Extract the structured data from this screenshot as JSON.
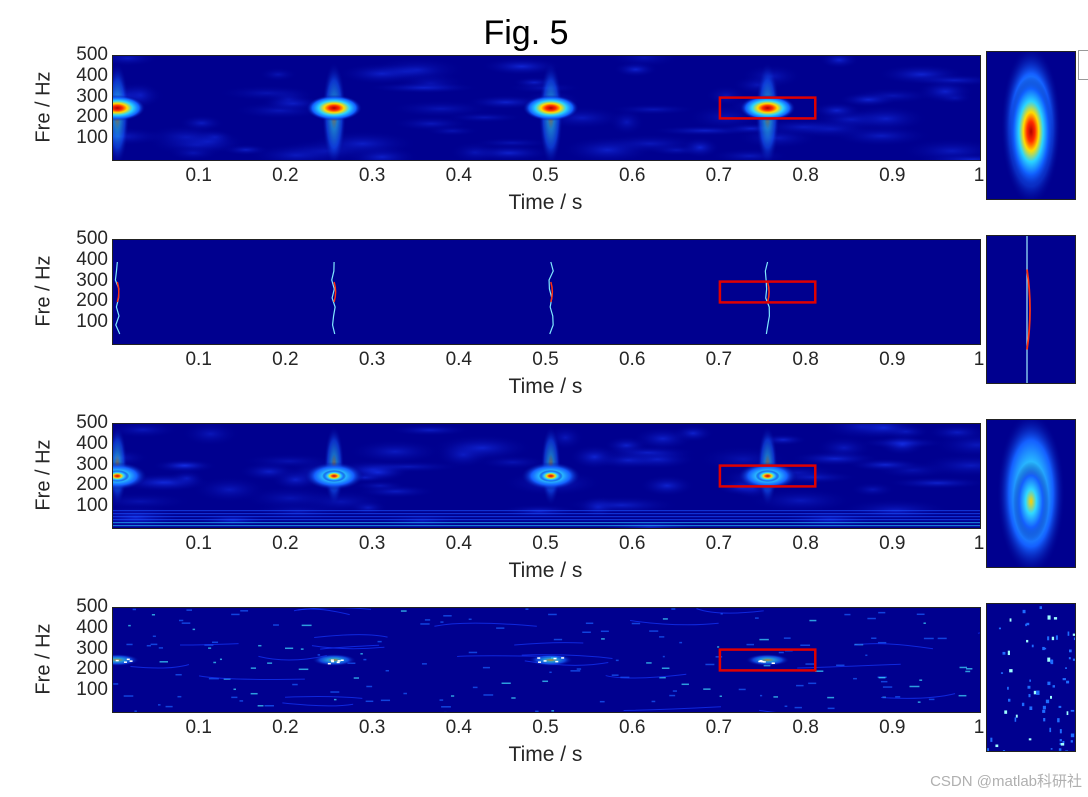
{
  "figure_title": "Fig. 5",
  "watermark": "CSDN @matlab科研社",
  "colors": {
    "background_low": "#00008f",
    "box": "#e00000"
  },
  "chart_data": [
    {
      "type": "heatmap",
      "title": "",
      "xlabel": "Time / s",
      "ylabel": "Fre / Hz",
      "xlim": [
        0,
        1
      ],
      "ylim": [
        0,
        500
      ],
      "xticks": [
        "0.1",
        "0.2",
        "0.3",
        "0.4",
        "0.5",
        "0.6",
        "0.7",
        "0.8",
        "0.9",
        "1"
      ],
      "yticks": [
        "100",
        "200",
        "300",
        "400",
        "500"
      ],
      "colormap": "jet",
      "style": "blob",
      "peaks": [
        {
          "t": 0.005,
          "f": 250
        },
        {
          "t": 0.255,
          "f": 250
        },
        {
          "t": 0.505,
          "f": 250
        },
        {
          "t": 0.755,
          "f": 250
        }
      ],
      "highlight_box": {
        "t0": 0.7,
        "t1": 0.81,
        "f0": 200,
        "f1": 300
      }
    },
    {
      "type": "heatmap",
      "title": "",
      "xlabel": "Time / s",
      "ylabel": "Fre / Hz",
      "xlim": [
        0,
        1
      ],
      "ylim": [
        0,
        500
      ],
      "xticks": [
        "0.1",
        "0.2",
        "0.3",
        "0.4",
        "0.5",
        "0.6",
        "0.7",
        "0.8",
        "0.9",
        "1"
      ],
      "yticks": [
        "100",
        "200",
        "300",
        "400",
        "500"
      ],
      "colormap": "jet",
      "style": "ridge",
      "peaks": [
        {
          "t": 0.005,
          "f": 250
        },
        {
          "t": 0.255,
          "f": 250
        },
        {
          "t": 0.505,
          "f": 250
        },
        {
          "t": 0.755,
          "f": 250
        }
      ],
      "highlight_box": {
        "t0": 0.7,
        "t1": 0.81,
        "f0": 200,
        "f1": 300
      }
    },
    {
      "type": "heatmap",
      "title": "",
      "xlabel": "Time / s",
      "ylabel": "Fre / Hz",
      "xlim": [
        0,
        1
      ],
      "ylim": [
        0,
        500
      ],
      "xticks": [
        "0.1",
        "0.2",
        "0.3",
        "0.4",
        "0.5",
        "0.6",
        "0.7",
        "0.8",
        "0.9",
        "1"
      ],
      "yticks": [
        "100",
        "200",
        "300",
        "400",
        "500"
      ],
      "colormap": "jet",
      "style": "wavelet",
      "peaks": [
        {
          "t": 0.005,
          "f": 250
        },
        {
          "t": 0.255,
          "f": 250
        },
        {
          "t": 0.505,
          "f": 250
        },
        {
          "t": 0.755,
          "f": 250
        }
      ],
      "highlight_box": {
        "t0": 0.7,
        "t1": 0.81,
        "f0": 200,
        "f1": 300
      }
    },
    {
      "type": "heatmap",
      "title": "",
      "xlabel": "Time / s",
      "ylabel": "Fre / Hz",
      "xlim": [
        0,
        1
      ],
      "ylim": [
        0,
        500
      ],
      "xticks": [
        "0.1",
        "0.2",
        "0.3",
        "0.4",
        "0.5",
        "0.6",
        "0.7",
        "0.8",
        "0.9",
        "1"
      ],
      "yticks": [
        "100",
        "200",
        "300",
        "400",
        "500"
      ],
      "colormap": "jet",
      "style": "sparse",
      "peaks": [
        {
          "t": 0.005,
          "f": 250
        },
        {
          "t": 0.255,
          "f": 250
        },
        {
          "t": 0.505,
          "f": 250
        },
        {
          "t": 0.755,
          "f": 250
        }
      ],
      "highlight_box": {
        "t0": 0.7,
        "t1": 0.81,
        "f0": 200,
        "f1": 300
      }
    }
  ]
}
